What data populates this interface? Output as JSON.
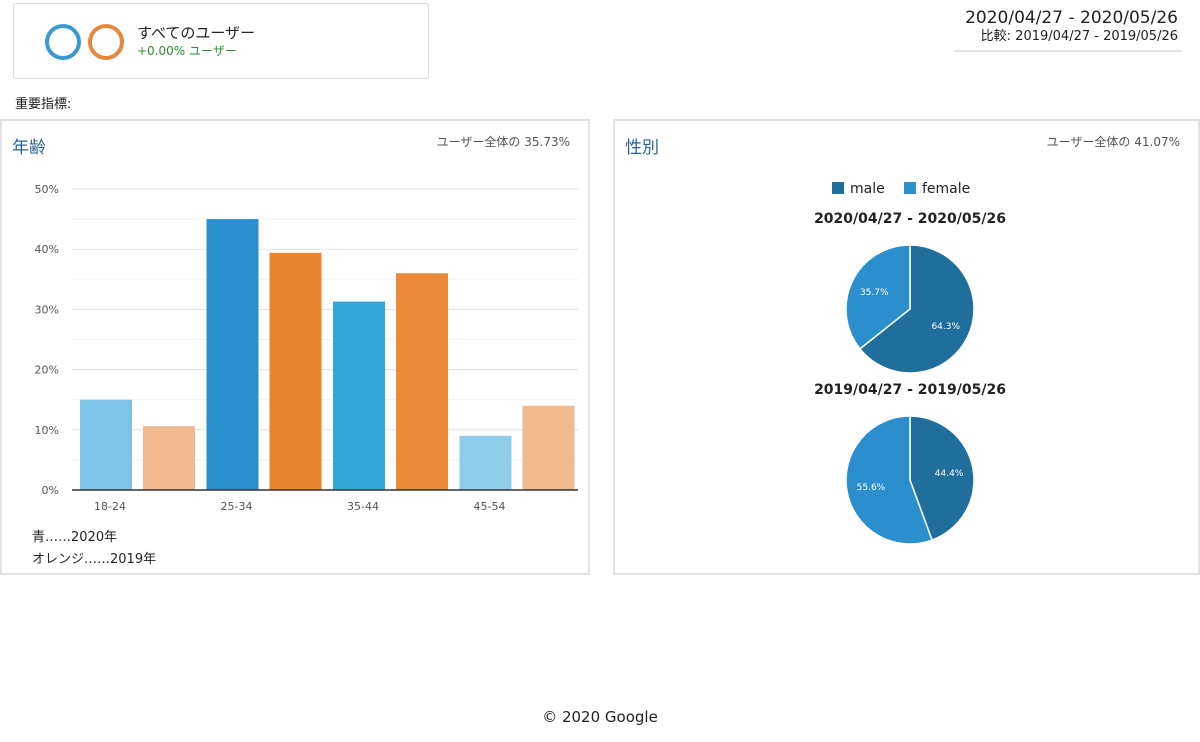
{
  "segment": {
    "title": "すべてのユーザー",
    "subtitle": "+0.00% ユーザー",
    "circle_colors": [
      "#3a9ad0",
      "#e8883a"
    ]
  },
  "date_range": {
    "current": "2020/04/27 - 2020/05/26",
    "compare": "比較: 2019/04/27 - 2019/05/26"
  },
  "key_metrics_label": "重要指標:",
  "age_panel": {
    "title": "年齢",
    "meta": "ユーザー全体の 35.73%",
    "legend_blue": "青……2020年",
    "legend_orange": "オレンジ……2019年"
  },
  "gender_panel": {
    "title": "性別",
    "meta": "ユーザー全体の 41.07%",
    "legend_male": "male",
    "legend_female": "female"
  },
  "footer": "© 2020 Google",
  "chart_data": [
    {
      "type": "bar",
      "categories": [
        "18-24",
        "25-34",
        "35-44",
        "45-54"
      ],
      "series": [
        {
          "name": "2020年",
          "values": [
            15,
            45,
            31.3,
            9
          ]
        },
        {
          "name": "2019年",
          "values": [
            10.6,
            39.4,
            36,
            14
          ]
        }
      ],
      "yticks": [
        "0%",
        "10%",
        "20%",
        "30%",
        "40%",
        "50%"
      ],
      "ylim": [
        0,
        50
      ],
      "grid": true,
      "colors": {
        "2020年": [
          "#7cc3e6",
          "#2b8fce",
          "#34a6d8",
          "#8fcdea"
        ],
        "2019年": [
          "#f0b98f",
          "#e8832e",
          "#eb8a37",
          "#f0ba8e"
        ]
      }
    },
    {
      "type": "pie",
      "title": "2020/04/27 - 2020/05/26",
      "labels": [
        "male",
        "female"
      ],
      "values": [
        64.3,
        35.7
      ],
      "value_labels": [
        "64.3%",
        "35.7%"
      ],
      "colors": [
        "#1f6e9c",
        "#2a8fcc"
      ]
    },
    {
      "type": "pie",
      "title": "2019/04/27 - 2019/05/26",
      "labels": [
        "male",
        "female"
      ],
      "values": [
        44.4,
        55.6
      ],
      "value_labels": [
        "44.4%",
        "55.6%"
      ],
      "colors": [
        "#1f6e9c",
        "#2a8fcc"
      ]
    }
  ]
}
